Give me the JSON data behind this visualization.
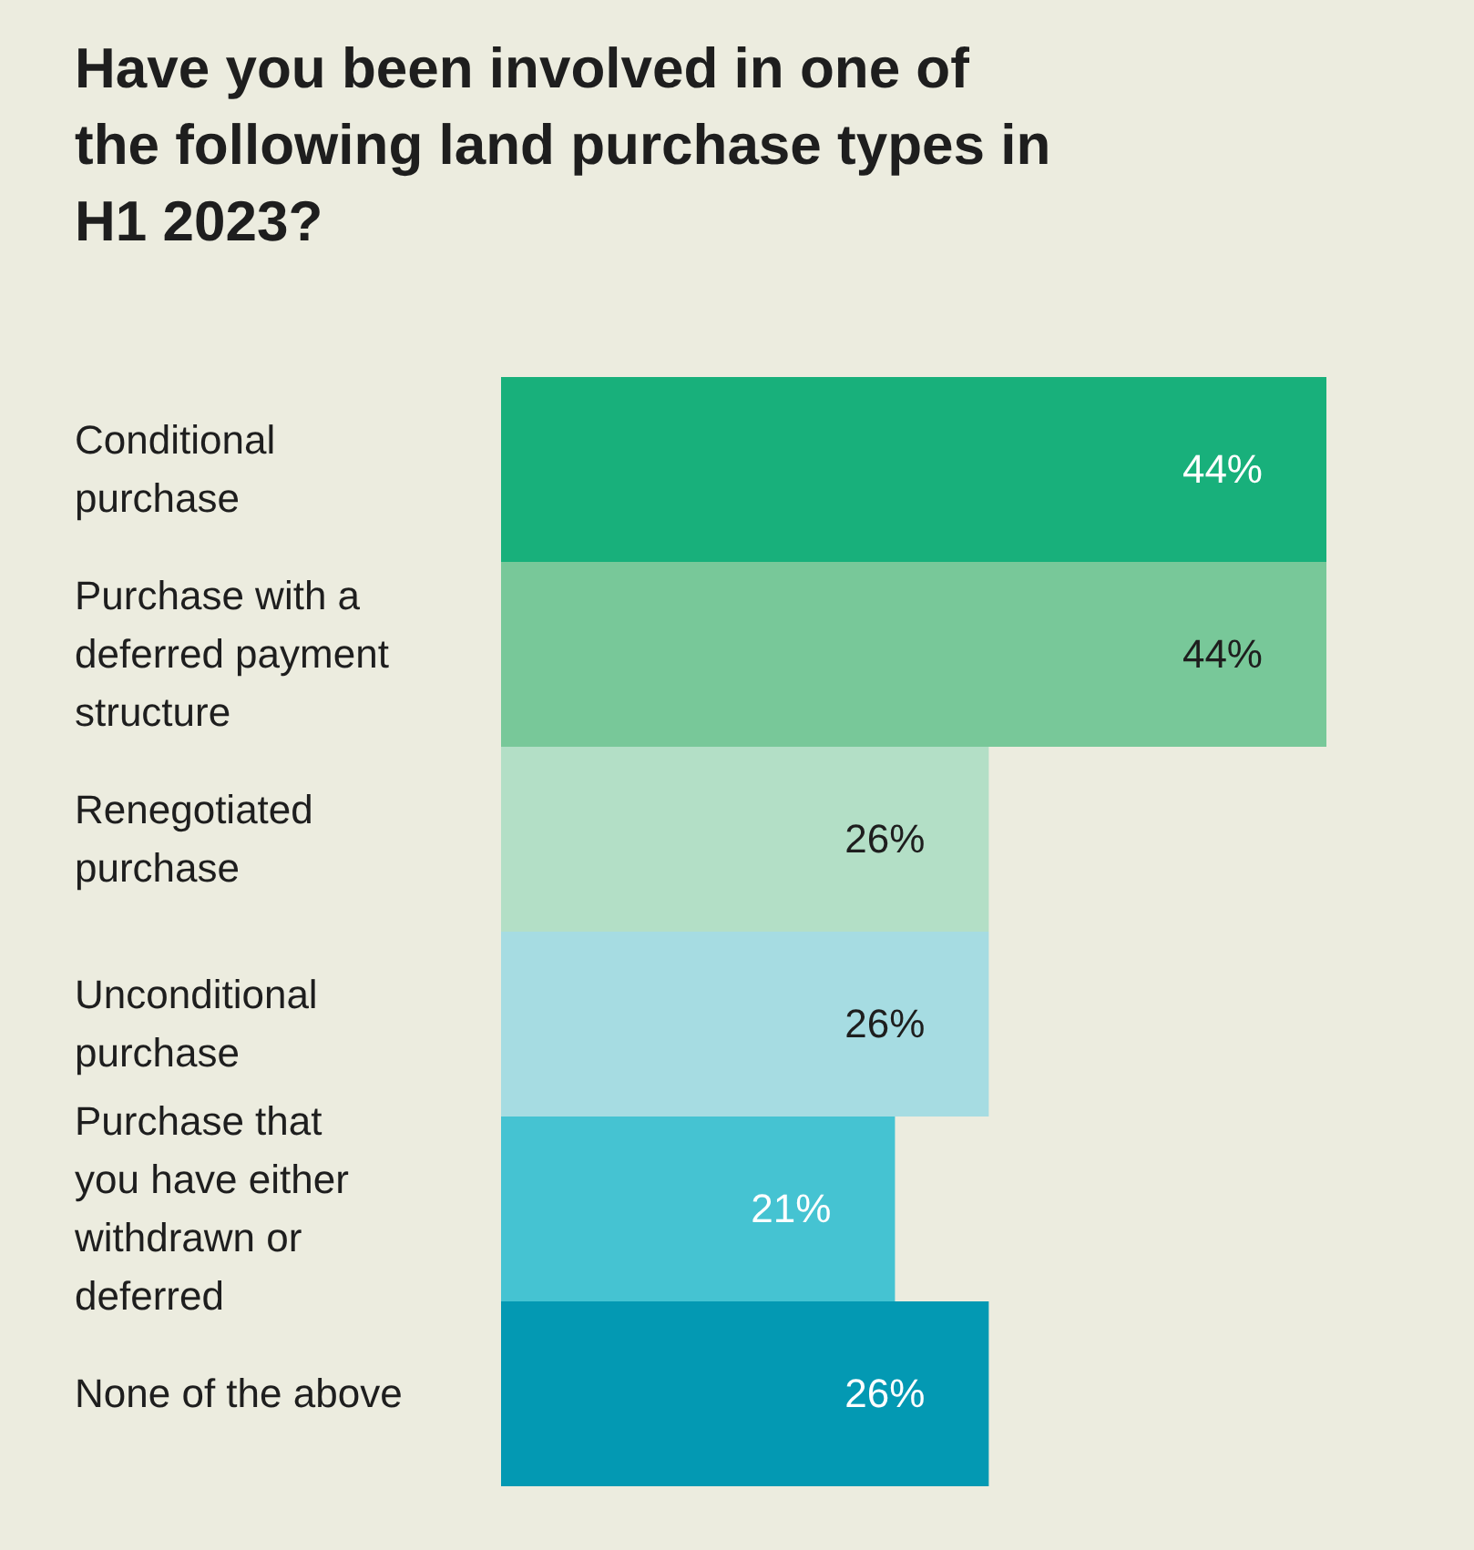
{
  "chart_data": {
    "type": "bar",
    "orientation": "horizontal",
    "title": "Have you been involved in one of\nthe following land purchase types in\nH1 2023?",
    "categories": [
      "Conditional\npurchase",
      "Purchase with a\ndeferred payment\nstructure",
      "Renegotiated\npurchase",
      "Unconditional\npurchase",
      "Purchase that\nyou have either\nwithdrawn or\ndeferred",
      "None of the above"
    ],
    "values": [
      44,
      44,
      26,
      26,
      21,
      26
    ],
    "value_labels": [
      "44%",
      "44%",
      "26%",
      "26%",
      "21%",
      "26%"
    ],
    "colors": [
      "#18b07b",
      "#78c899",
      "#b3dfc6",
      "#a6dce2",
      "#45c3d2",
      "#0399b3"
    ],
    "tick_labels": "y"
  }
}
